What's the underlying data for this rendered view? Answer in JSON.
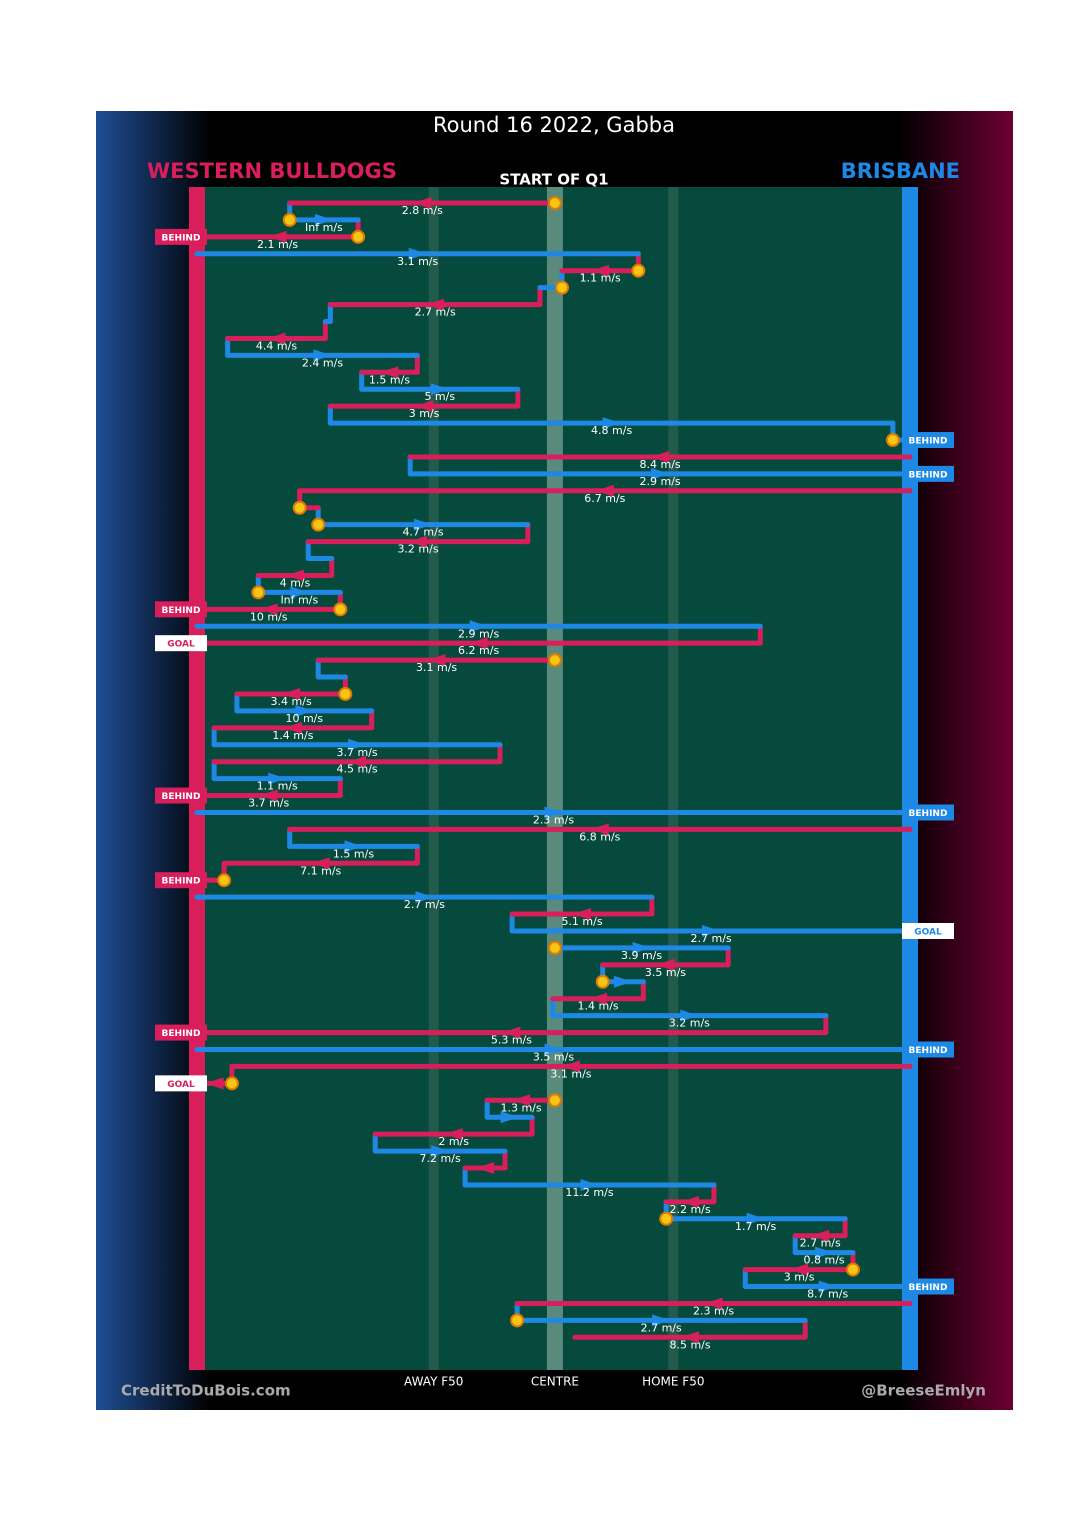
{
  "chart_data": {
    "type": "chain",
    "title": "Round 16 2022, Gabba",
    "subtitle": "START OF Q1",
    "teams": [
      {
        "name": "WESTERN BULLDOGS",
        "color": "#d81e5b"
      },
      {
        "name": "BRISBANE",
        "color": "#1e88e5"
      }
    ],
    "credit_left": "CreditToDuBois.com",
    "credit_right": "@BreeseEmlyn",
    "xlim": [
      0,
      100
    ],
    "xticks": [
      {
        "value": 33.2,
        "label": "AWAY F50"
      },
      {
        "value": 50.2,
        "label": "CENTRE"
      },
      {
        "value": 66.8,
        "label": "HOME F50"
      }
    ],
    "rows": [
      {
        "team": 0,
        "from": 50.2,
        "to": 13.0,
        "label": "2.8 m/s",
        "marker": true
      },
      {
        "team": 1,
        "from": 13.0,
        "to": 22.6,
        "label": "Inf m/s",
        "marker": true
      },
      {
        "team": 0,
        "from": 22.6,
        "to": 0,
        "label": "2.1 m/s",
        "marker": true,
        "result": "BEHIND"
      },
      {
        "team": 1,
        "from": 0,
        "to": 61.9,
        "label": "3.1 m/s"
      },
      {
        "team": 0,
        "from": 61.9,
        "to": 51.2,
        "label": "1.1 m/s",
        "marker": true
      },
      {
        "team": 1,
        "from": 51.2,
        "to": 48.1,
        "marker": true
      },
      {
        "team": 0,
        "from": 48.1,
        "to": 18.7,
        "label": "2.7 m/s"
      },
      {
        "team": 1,
        "from": 18.7,
        "to": 18.0
      },
      {
        "team": 0,
        "from": 18.0,
        "to": 4.3,
        "label": "4.4 m/s"
      },
      {
        "team": 1,
        "from": 4.3,
        "to": 30.9,
        "label": "2.4 m/s"
      },
      {
        "team": 0,
        "from": 30.9,
        "to": 23.1,
        "label": "1.5 m/s"
      },
      {
        "team": 1,
        "from": 23.1,
        "to": 45.0,
        "label": "5 m/s"
      },
      {
        "team": 0,
        "from": 45.0,
        "to": 18.7,
        "label": "3 m/s"
      },
      {
        "team": 1,
        "from": 18.7,
        "to": 97.6,
        "label": "4.8 m/s"
      },
      {
        "team": 1,
        "from": 97.6,
        "to": 100,
        "marker": true,
        "result": "BEHIND"
      },
      {
        "team": 0,
        "from": 100,
        "to": 29.9,
        "label": "8.4 m/s"
      },
      {
        "team": 1,
        "from": 29.9,
        "to": 100,
        "label": "2.9 m/s",
        "result": "BEHIND"
      },
      {
        "team": 0,
        "from": 100,
        "to": 14.4,
        "label": "6.7 m/s"
      },
      {
        "team": 0,
        "from": 14.4,
        "to": 17.0,
        "marker": true
      },
      {
        "team": 1,
        "from": 17.0,
        "to": 46.4,
        "label": "4.7 m/s",
        "marker": true
      },
      {
        "team": 0,
        "from": 46.4,
        "to": 15.6,
        "label": "3.2 m/s"
      },
      {
        "team": 1,
        "from": 15.6,
        "to": 18.9
      },
      {
        "team": 0,
        "from": 18.9,
        "to": 8.6,
        "label": "4 m/s"
      },
      {
        "team": 1,
        "from": 8.6,
        "to": 20.1,
        "label": "Inf m/s",
        "marker": true
      },
      {
        "team": 0,
        "from": 20.1,
        "to": 0,
        "label": "10 m/s",
        "marker": true,
        "result": "BEHIND"
      },
      {
        "team": 1,
        "from": 0,
        "to": 79.0,
        "label": "2.9 m/s"
      },
      {
        "team": 0,
        "from": 79.0,
        "to": 0,
        "label": "6.2 m/s",
        "result": "GOAL"
      },
      {
        "team": 0,
        "from": 50.2,
        "to": 17.0,
        "label": "3.1 m/s",
        "marker": true
      },
      {
        "team": 1,
        "from": 17.0,
        "to": 20.8
      },
      {
        "team": 0,
        "from": 20.8,
        "to": 5.6,
        "label": "3.4 m/s",
        "marker": true
      },
      {
        "team": 1,
        "from": 5.6,
        "to": 24.5,
        "label": "10 m/s"
      },
      {
        "team": 0,
        "from": 24.5,
        "to": 2.4,
        "label": "1.4 m/s"
      },
      {
        "team": 1,
        "from": 2.4,
        "to": 42.5,
        "label": "3.7 m/s"
      },
      {
        "team": 0,
        "from": 42.5,
        "to": 2.4,
        "label": "4.5 m/s"
      },
      {
        "team": 1,
        "from": 2.4,
        "to": 20.1,
        "label": "1.1 m/s"
      },
      {
        "team": 0,
        "from": 20.1,
        "to": 0,
        "label": "3.7 m/s",
        "result": "BEHIND"
      },
      {
        "team": 1,
        "from": 0,
        "to": 100,
        "label": "2.3 m/s",
        "result": "BEHIND"
      },
      {
        "team": 0,
        "from": 100,
        "to": 13.0,
        "label": "6.8 m/s"
      },
      {
        "team": 1,
        "from": 13.0,
        "to": 30.9,
        "label": "1.5 m/s"
      },
      {
        "team": 0,
        "from": 30.9,
        "to": 3.8,
        "label": "7.1 m/s"
      },
      {
        "team": 0,
        "from": 3.8,
        "to": 0,
        "marker": true,
        "result": "BEHIND"
      },
      {
        "team": 1,
        "from": 0,
        "to": 63.8,
        "label": "2.7 m/s"
      },
      {
        "team": 0,
        "from": 63.8,
        "to": 44.2,
        "label": "5.1 m/s"
      },
      {
        "team": 1,
        "from": 44.2,
        "to": 100,
        "label": "2.7 m/s",
        "result": "GOAL"
      },
      {
        "team": 1,
        "from": 50.2,
        "to": 74.5,
        "label": "3.9 m/s",
        "marker": true
      },
      {
        "team": 0,
        "from": 74.5,
        "to": 56.9,
        "label": "3.5 m/s"
      },
      {
        "team": 1,
        "from": 56.9,
        "to": 62.6,
        "marker": true
      },
      {
        "team": 0,
        "from": 62.6,
        "to": 49.9,
        "label": "1.4 m/s"
      },
      {
        "team": 1,
        "from": 49.9,
        "to": 88.2,
        "label": "3.2 m/s"
      },
      {
        "team": 0,
        "from": 88.2,
        "to": 0,
        "label": "5.3 m/s",
        "result": "BEHIND"
      },
      {
        "team": 1,
        "from": 0,
        "to": 100,
        "label": "3.5 m/s",
        "result": "BEHIND"
      },
      {
        "team": 0,
        "from": 100,
        "to": 4.9,
        "label": "3.1 m/s"
      },
      {
        "team": 0,
        "from": 4.9,
        "to": 0,
        "marker": true,
        "result": "GOAL"
      },
      {
        "team": 0,
        "from": 50.2,
        "to": 40.7,
        "label": "1.3 m/s",
        "marker": true
      },
      {
        "team": 1,
        "from": 40.7,
        "to": 47.0
      },
      {
        "team": 0,
        "from": 47.0,
        "to": 25.0,
        "label": "2 m/s"
      },
      {
        "team": 1,
        "from": 25.0,
        "to": 43.2,
        "label": "7.2 m/s"
      },
      {
        "team": 0,
        "from": 43.2,
        "to": 37.6
      },
      {
        "team": 1,
        "from": 37.6,
        "to": 72.5,
        "label": "11.2 m/s"
      },
      {
        "team": 0,
        "from": 72.5,
        "to": 65.8,
        "label": "2.2 m/s"
      },
      {
        "team": 1,
        "from": 65.8,
        "to": 90.9,
        "label": "1.7 m/s",
        "marker": true
      },
      {
        "team": 0,
        "from": 90.9,
        "to": 83.9,
        "label": "2.7 m/s"
      },
      {
        "team": 1,
        "from": 83.9,
        "to": 92.0,
        "label": "0.8 m/s"
      },
      {
        "team": 0,
        "from": 92.0,
        "to": 76.9,
        "label": "3 m/s",
        "marker": true
      },
      {
        "team": 1,
        "from": 76.9,
        "to": 100,
        "label": "8.7 m/s",
        "result": "BEHIND"
      },
      {
        "team": 0,
        "from": 100,
        "to": 44.9,
        "label": "2.3 m/s"
      },
      {
        "team": 1,
        "from": 44.9,
        "to": 85.3,
        "label": "2.7 m/s",
        "marker": true
      },
      {
        "team": 0,
        "from": 85.3,
        "to": 53.0,
        "label": "8.5 m/s"
      }
    ]
  }
}
